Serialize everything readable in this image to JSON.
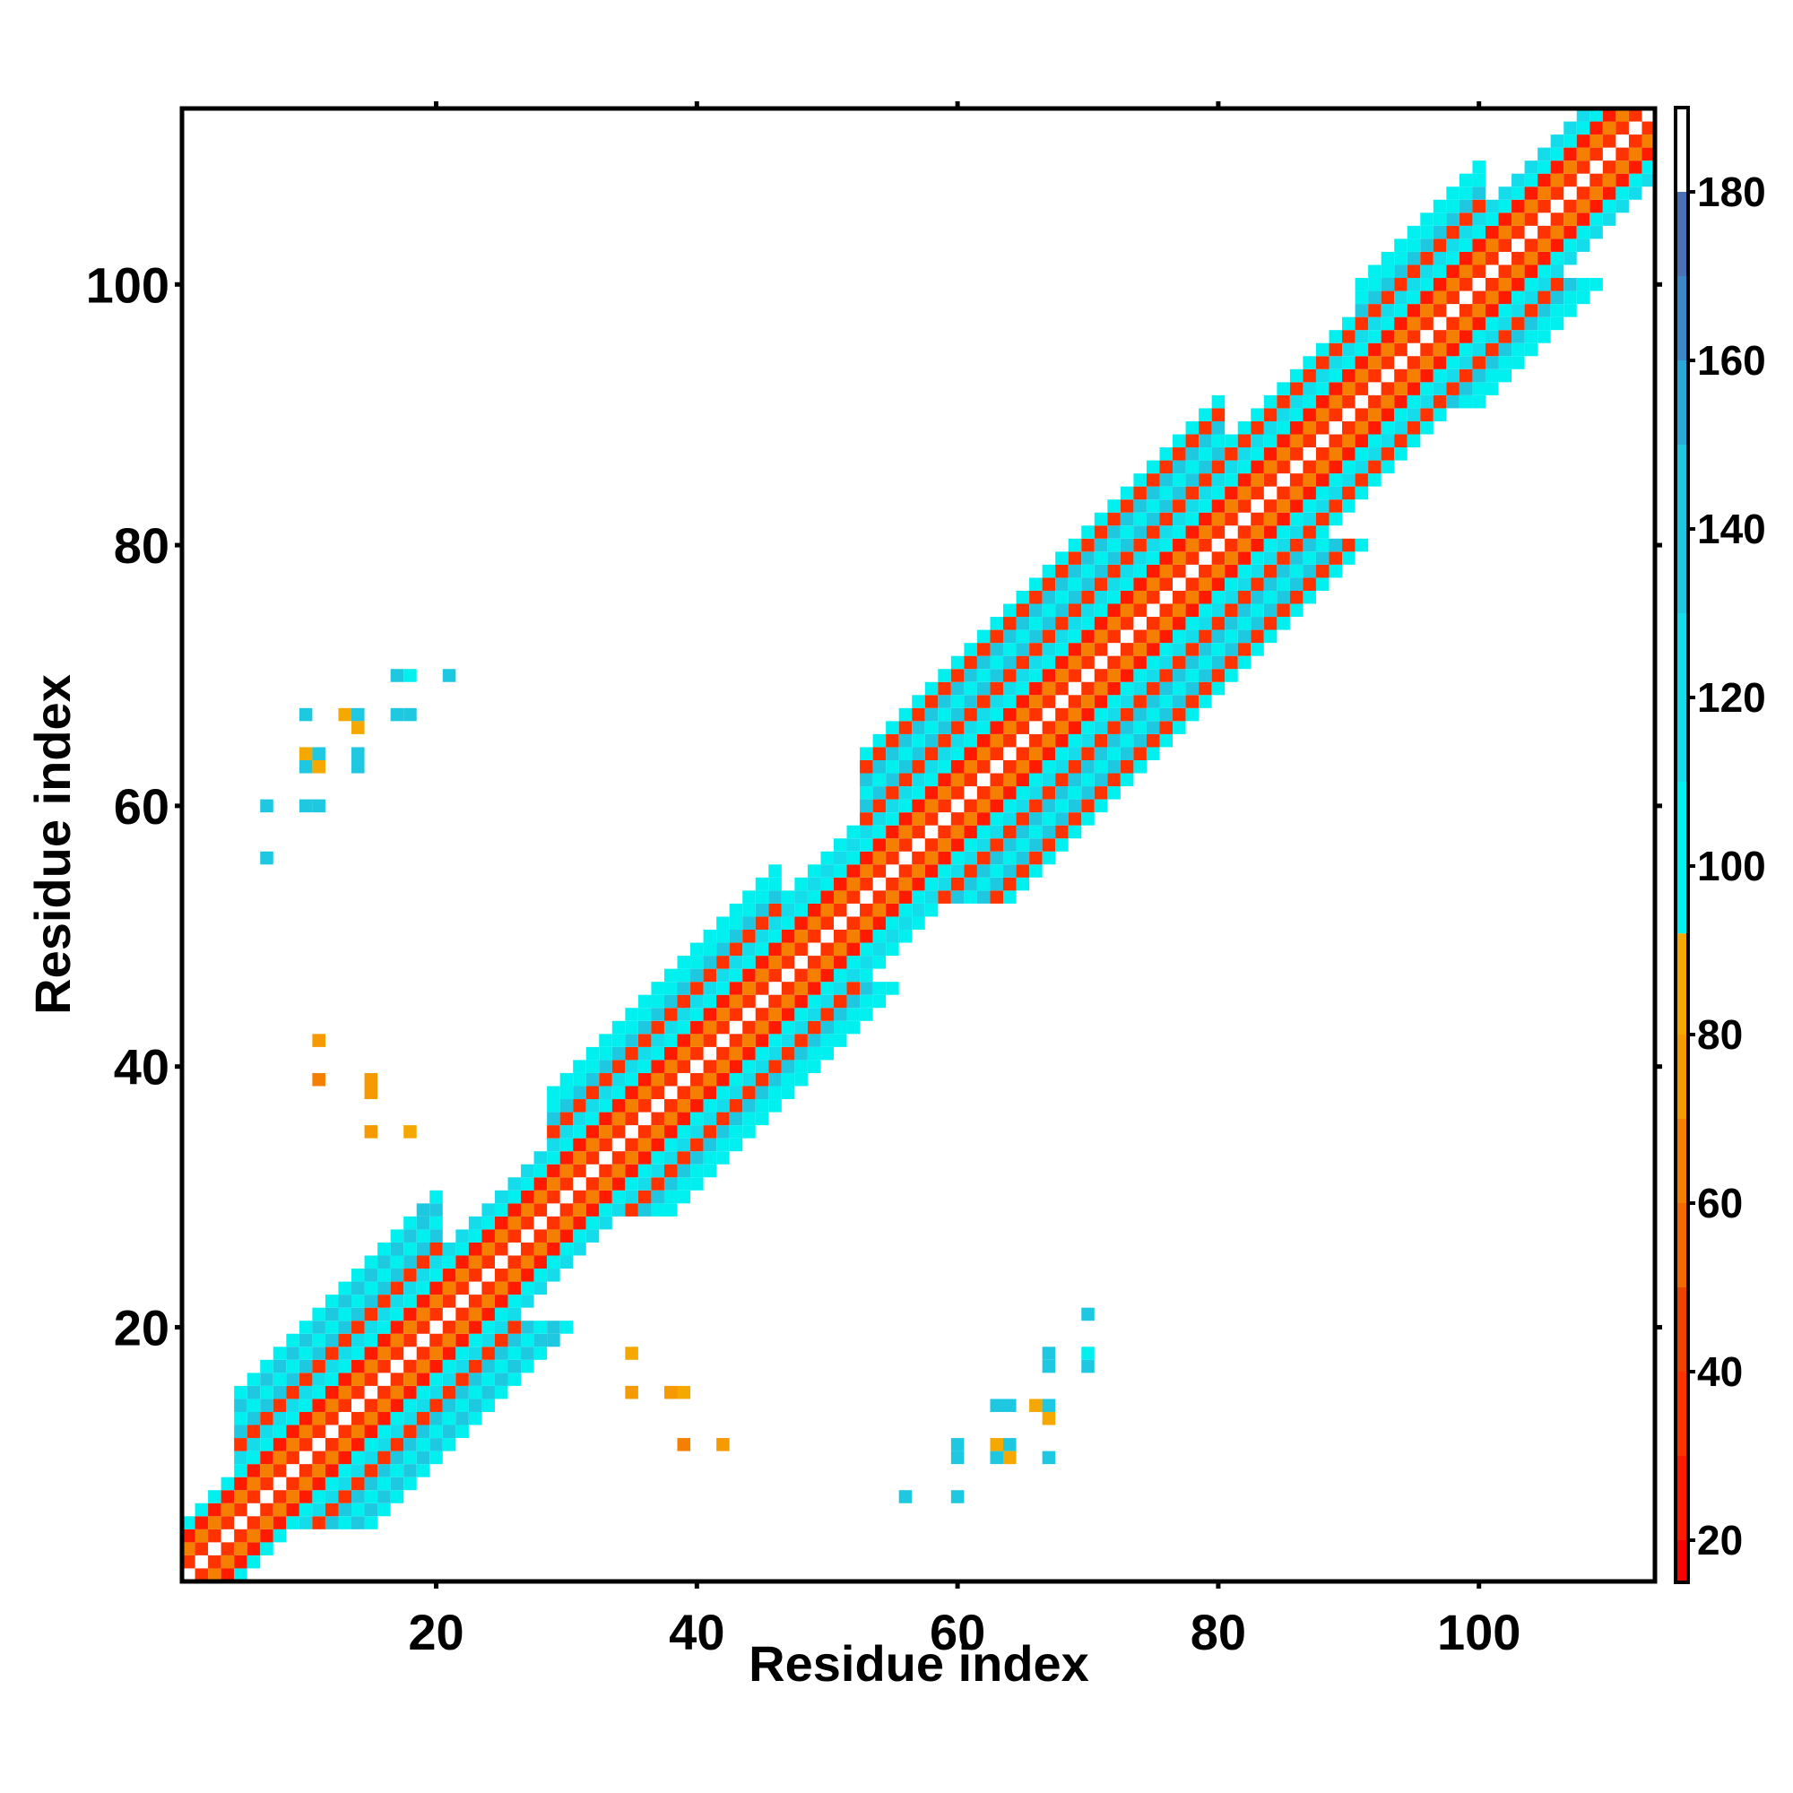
{
  "chart_data": {
    "type": "heatmap",
    "title": "",
    "xlabel": "Residue index",
    "ylabel": "Residue index",
    "xlim": [
      0.5,
      113.5
    ],
    "ylim": [
      0.5,
      113.5
    ],
    "x_ticks": [
      20,
      40,
      60,
      80,
      100
    ],
    "y_ticks": [
      20,
      40,
      60,
      80,
      100
    ],
    "colorbar": {
      "min": 15,
      "max": 190,
      "ticks": [
        20,
        40,
        60,
        80,
        100,
        120,
        140,
        160,
        180
      ],
      "bins": [
        {
          "from": 15,
          "to": 20,
          "color": "#ff0000"
        },
        {
          "from": 20,
          "to": 30,
          "color": "#ff1a00"
        },
        {
          "from": 30,
          "to": 40,
          "color": "#ff3300"
        },
        {
          "from": 40,
          "to": 50,
          "color": "#ee4400"
        },
        {
          "from": 50,
          "to": 60,
          "color": "#f56a00"
        },
        {
          "from": 60,
          "to": 70,
          "color": "#f47f00"
        },
        {
          "from": 70,
          "to": 80,
          "color": "#f59a00"
        },
        {
          "from": 80,
          "to": 92,
          "color": "#f4a800"
        },
        {
          "from": 92,
          "to": 110,
          "color": "#00f0f0"
        },
        {
          "from": 110,
          "to": 130,
          "color": "#14dcea"
        },
        {
          "from": 130,
          "to": 150,
          "color": "#1ec8e0"
        },
        {
          "from": 150,
          "to": 160,
          "color": "#2aa8d8"
        },
        {
          "from": 160,
          "to": 170,
          "color": "#3a88c8"
        },
        {
          "from": 170,
          "to": 180,
          "color": "#4a70b8"
        },
        {
          "from": 180,
          "to": 190,
          "color": "#ffffff"
        }
      ]
    },
    "band": {
      "diagonal_from": 1,
      "diagonal_to": 113,
      "segments": [
        {
          "from": 1,
          "to": 4,
          "width": 4
        },
        {
          "from": 4,
          "to": 20,
          "width": 10
        },
        {
          "from": 20,
          "to": 28,
          "width": 5
        },
        {
          "from": 28,
          "to": 46,
          "width": 9
        },
        {
          "from": 46,
          "to": 52,
          "width": 6
        },
        {
          "from": 52,
          "to": 80,
          "width": 11
        },
        {
          "from": 80,
          "to": 90,
          "width": 7
        },
        {
          "from": 90,
          "to": 100,
          "width": 9
        },
        {
          "from": 100,
          "to": 113,
          "width": 5
        }
      ],
      "pattern": {
        "offset_1": 30,
        "offset_2": 60,
        "offset_3": 20,
        "offset_4": 100,
        "offset_5": 120,
        "offset_6": 140,
        "offset_7_plus": 130
      }
    },
    "off_diagonal_cells": [
      {
        "x": 7,
        "y": 56,
        "v": 130
      },
      {
        "x": 7,
        "y": 60,
        "v": 130
      },
      {
        "x": 10,
        "y": 60,
        "v": 130
      },
      {
        "x": 11,
        "y": 60,
        "v": 130
      },
      {
        "x": 10,
        "y": 63,
        "v": 130
      },
      {
        "x": 11,
        "y": 63,
        "v": 85
      },
      {
        "x": 10,
        "y": 64,
        "v": 85
      },
      {
        "x": 11,
        "y": 64,
        "v": 130
      },
      {
        "x": 14,
        "y": 63,
        "v": 130
      },
      {
        "x": 14,
        "y": 64,
        "v": 130
      },
      {
        "x": 10,
        "y": 67,
        "v": 130
      },
      {
        "x": 13,
        "y": 67,
        "v": 85
      },
      {
        "x": 14,
        "y": 67,
        "v": 130
      },
      {
        "x": 14,
        "y": 66,
        "v": 85
      },
      {
        "x": 17,
        "y": 67,
        "v": 130
      },
      {
        "x": 18,
        "y": 67,
        "v": 130
      },
      {
        "x": 17,
        "y": 70,
        "v": 130
      },
      {
        "x": 18,
        "y": 70,
        "v": 100
      },
      {
        "x": 21,
        "y": 70,
        "v": 130
      },
      {
        "x": 11,
        "y": 39,
        "v": 65
      },
      {
        "x": 11,
        "y": 42,
        "v": 75
      },
      {
        "x": 15,
        "y": 38,
        "v": 75
      },
      {
        "x": 15,
        "y": 39,
        "v": 75
      },
      {
        "x": 15,
        "y": 35,
        "v": 75
      },
      {
        "x": 18,
        "y": 35,
        "v": 85
      },
      {
        "x": 19,
        "y": 28,
        "v": 130
      },
      {
        "x": 19,
        "y": 29,
        "v": 130
      },
      {
        "x": 28,
        "y": 19,
        "v": 130
      },
      {
        "x": 29,
        "y": 19,
        "v": 130
      },
      {
        "x": 35,
        "y": 18,
        "v": 85
      },
      {
        "x": 35,
        "y": 15,
        "v": 75
      },
      {
        "x": 38,
        "y": 15,
        "v": 75
      },
      {
        "x": 39,
        "y": 15,
        "v": 85
      },
      {
        "x": 39,
        "y": 11,
        "v": 65
      },
      {
        "x": 42,
        "y": 11,
        "v": 75
      },
      {
        "x": 56,
        "y": 7,
        "v": 130
      },
      {
        "x": 60,
        "y": 7,
        "v": 130
      },
      {
        "x": 60,
        "y": 10,
        "v": 130
      },
      {
        "x": 60,
        "y": 11,
        "v": 130
      },
      {
        "x": 63,
        "y": 10,
        "v": 130
      },
      {
        "x": 63,
        "y": 11,
        "v": 85
      },
      {
        "x": 64,
        "y": 10,
        "v": 85
      },
      {
        "x": 64,
        "y": 11,
        "v": 130
      },
      {
        "x": 63,
        "y": 14,
        "v": 130
      },
      {
        "x": 64,
        "y": 14,
        "v": 130
      },
      {
        "x": 67,
        "y": 10,
        "v": 130
      },
      {
        "x": 66,
        "y": 14,
        "v": 85
      },
      {
        "x": 67,
        "y": 14,
        "v": 130
      },
      {
        "x": 67,
        "y": 13,
        "v": 85
      },
      {
        "x": 67,
        "y": 17,
        "v": 130
      },
      {
        "x": 67,
        "y": 18,
        "v": 130
      },
      {
        "x": 70,
        "y": 17,
        "v": 130
      },
      {
        "x": 70,
        "y": 18,
        "v": 100
      },
      {
        "x": 70,
        "y": 21,
        "v": 130
      }
    ],
    "grid": false,
    "legend": "colorbar-right"
  }
}
